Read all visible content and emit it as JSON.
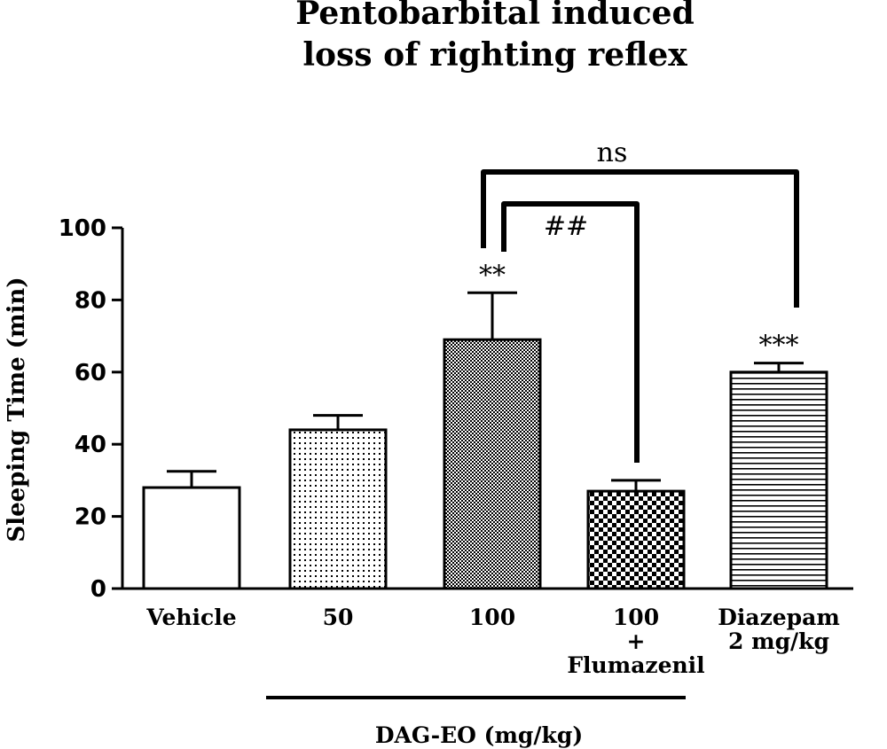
{
  "chart_data": {
    "type": "bar",
    "title_lines": [
      "Pentobarbital induced",
      "loss of righting reflex"
    ],
    "ylabel": "Sleeping Time (min)",
    "ylim": [
      0,
      100
    ],
    "yticks": [
      "0",
      "20",
      "40",
      "60",
      "80",
      "100"
    ],
    "categories": [
      {
        "lines": [
          "Vehicle"
        ],
        "value": 28,
        "error": 4.5,
        "pattern": "none",
        "sig": ""
      },
      {
        "lines": [
          "50"
        ],
        "value": 44,
        "error": 4,
        "pattern": "dots",
        "sig": ""
      },
      {
        "lines": [
          "100"
        ],
        "value": 69,
        "error": 13,
        "pattern": "dense-checker",
        "sig": "**"
      },
      {
        "lines": [
          "100",
          "+",
          "Flumazenil"
        ],
        "value": 27,
        "error": 3,
        "pattern": "checker",
        "sig": ""
      },
      {
        "lines": [
          "Diazepam",
          "2 mg/kg"
        ],
        "value": 60,
        "error": 2.5,
        "pattern": "horizontal-lines",
        "sig": "***"
      }
    ],
    "comparisons": [
      {
        "from": 2,
        "to": 4,
        "label": "ns"
      },
      {
        "from": 2,
        "to": 3,
        "label": "##"
      }
    ],
    "group_label": "DAG-EO (mg/kg)",
    "colors": {
      "bar_edge": "#000000",
      "fill": "#ffffff"
    }
  }
}
